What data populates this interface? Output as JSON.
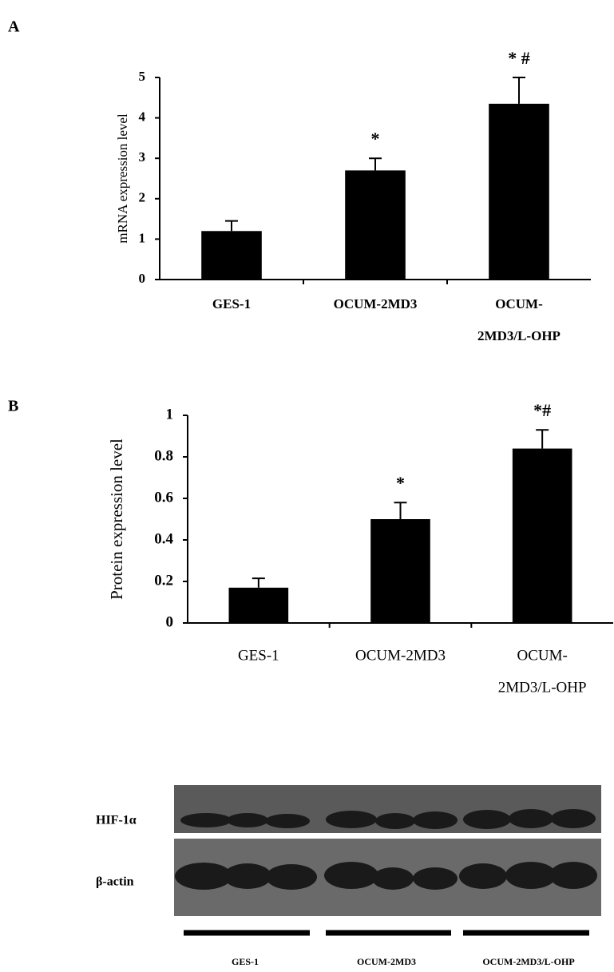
{
  "chart_data": [
    {
      "type": "bar",
      "panel": "A",
      "y_label": "mRNA expression level",
      "categories": [
        [
          "GES-1"
        ],
        [
          "OCUM-2MD3"
        ],
        [
          "OCUM-",
          "2MD3/L-OHP"
        ]
      ],
      "values": [
        1.2,
        2.7,
        4.35
      ],
      "errors": [
        0.25,
        0.3,
        0.65
      ],
      "annotations": [
        null,
        "*",
        "* #"
      ],
      "color": "#000000",
      "ylim": [
        0,
        5
      ],
      "yticks": [
        0,
        1,
        2,
        3,
        4,
        5
      ]
    },
    {
      "type": "bar",
      "panel": "B",
      "y_label": "Protein expression level",
      "categories": [
        [
          "GES-1"
        ],
        [
          "OCUM-2MD3"
        ],
        [
          "OCUM-",
          "2MD3/L-OHP"
        ]
      ],
      "values": [
        0.17,
        0.5,
        0.84
      ],
      "errors": [
        0.045,
        0.08,
        0.09
      ],
      "annotations": [
        null,
        "*",
        "*#"
      ],
      "color": "#000000",
      "ylim": [
        0,
        1
      ],
      "yticks": [
        0,
        0.2,
        0.4,
        0.6,
        0.8,
        1
      ]
    }
  ],
  "blot": {
    "rows": [
      "HIF-1α",
      "β-actin"
    ],
    "groups": [
      "GES-1",
      "OCUM-2MD3",
      "OCUM-2MD3/L-OHP"
    ]
  }
}
